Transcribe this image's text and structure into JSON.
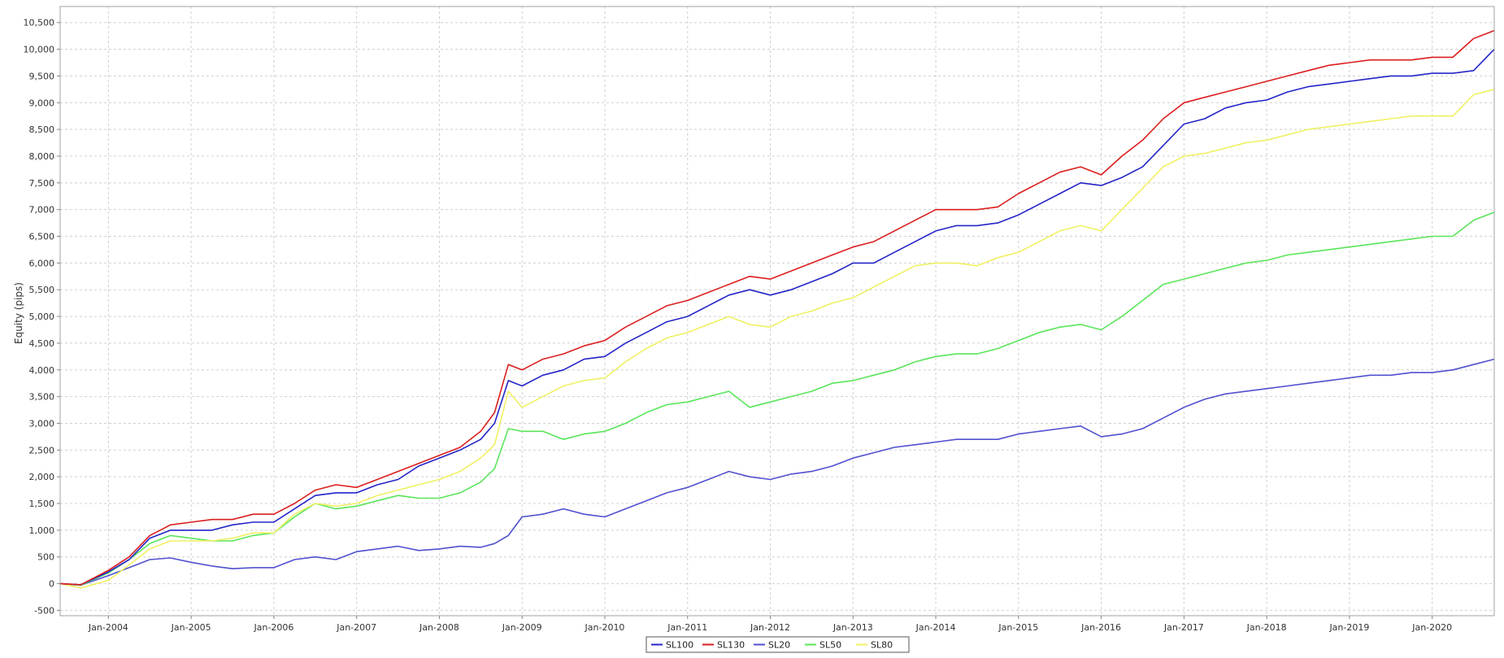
{
  "chart_data": {
    "type": "line",
    "title": "",
    "xlabel": "",
    "ylabel": "Equity (pips)",
    "xlim": [
      "2003-06",
      "2020-10"
    ],
    "ylim": [
      -600,
      10800
    ],
    "y_ticks": [
      -500,
      0,
      500,
      1000,
      1500,
      2000,
      2500,
      3000,
      3500,
      4000,
      4500,
      5000,
      5500,
      6000,
      6500,
      7000,
      7500,
      8000,
      8500,
      9000,
      9500,
      10000,
      10500
    ],
    "y_tick_labels": [
      "-500",
      "0",
      "500",
      "1,000",
      "1,500",
      "2,000",
      "2,500",
      "3,000",
      "3,500",
      "4,000",
      "4,500",
      "5,000",
      "5,500",
      "6,000",
      "6,500",
      "7,000",
      "7,500",
      "8,000",
      "8,500",
      "9,000",
      "9,500",
      "10,000",
      "10,500"
    ],
    "x_ticks": [
      "2004-01",
      "2005-01",
      "2006-01",
      "2007-01",
      "2008-01",
      "2009-01",
      "2010-01",
      "2011-01",
      "2012-01",
      "2013-01",
      "2014-01",
      "2015-01",
      "2016-01",
      "2017-01",
      "2018-01",
      "2019-01",
      "2020-01"
    ],
    "x_tick_labels": [
      "Jan-2004",
      "Jan-2005",
      "Jan-2006",
      "Jan-2007",
      "Jan-2008",
      "Jan-2009",
      "Jan-2010",
      "Jan-2011",
      "Jan-2012",
      "Jan-2013",
      "Jan-2014",
      "Jan-2015",
      "Jan-2016",
      "Jan-2017",
      "Jan-2018",
      "Jan-2019",
      "Jan-2020"
    ],
    "grid": true,
    "legend_position": "bottom-center",
    "series": [
      {
        "name": "SL100",
        "color": "#2424c8",
        "x": [
          "2003-06",
          "2003-09",
          "2004-01",
          "2004-04",
          "2004-07",
          "2004-10",
          "2005-01",
          "2005-04",
          "2005-07",
          "2005-10",
          "2006-01",
          "2006-04",
          "2006-07",
          "2006-10",
          "2007-01",
          "2007-04",
          "2007-07",
          "2007-10",
          "2008-01",
          "2008-04",
          "2008-07",
          "2008-09",
          "2008-11",
          "2009-01",
          "2009-04",
          "2009-07",
          "2009-10",
          "2010-01",
          "2010-04",
          "2010-07",
          "2010-10",
          "2011-01",
          "2011-04",
          "2011-07",
          "2011-10",
          "2012-01",
          "2012-04",
          "2012-07",
          "2012-10",
          "2013-01",
          "2013-04",
          "2013-07",
          "2013-10",
          "2014-01",
          "2014-04",
          "2014-07",
          "2014-10",
          "2015-01",
          "2015-04",
          "2015-07",
          "2015-10",
          "2016-01",
          "2016-04",
          "2016-07",
          "2016-10",
          "2017-01",
          "2017-04",
          "2017-07",
          "2017-10",
          "2018-01",
          "2018-04",
          "2018-07",
          "2018-10",
          "2019-01",
          "2019-04",
          "2019-07",
          "2019-10",
          "2020-01",
          "2020-04",
          "2020-07",
          "2020-10"
        ],
        "y": [
          0,
          -20,
          220,
          450,
          850,
          1000,
          1000,
          1000,
          1100,
          1150,
          1150,
          1400,
          1650,
          1700,
          1700,
          1850,
          1950,
          2200,
          2350,
          2500,
          2700,
          3000,
          3800,
          3700,
          3900,
          4000,
          4200,
          4250,
          4500,
          4700,
          4900,
          5000,
          5200,
          5400,
          5500,
          5400,
          5500,
          5650,
          5800,
          6000,
          6000,
          6200,
          6400,
          6600,
          6700,
          6700,
          6750,
          6900,
          7100,
          7300,
          7500,
          7450,
          7600,
          7800,
          8200,
          8600,
          8700,
          8900,
          9000,
          9050,
          9200,
          9300,
          9350,
          9400,
          9450,
          9500,
          9500,
          9550,
          9550,
          9600,
          10000
        ]
      },
      {
        "name": "SL130",
        "color": "#dc1e1e",
        "x": [
          "2003-06",
          "2003-09",
          "2004-01",
          "2004-04",
          "2004-07",
          "2004-10",
          "2005-01",
          "2005-04",
          "2005-07",
          "2005-10",
          "2006-01",
          "2006-04",
          "2006-07",
          "2006-10",
          "2007-01",
          "2007-04",
          "2007-07",
          "2007-10",
          "2008-01",
          "2008-04",
          "2008-07",
          "2008-09",
          "2008-11",
          "2009-01",
          "2009-04",
          "2009-07",
          "2009-10",
          "2010-01",
          "2010-04",
          "2010-07",
          "2010-10",
          "2011-01",
          "2011-04",
          "2011-07",
          "2011-10",
          "2012-01",
          "2012-04",
          "2012-07",
          "2012-10",
          "2013-01",
          "2013-04",
          "2013-07",
          "2013-10",
          "2014-01",
          "2014-04",
          "2014-07",
          "2014-10",
          "2015-01",
          "2015-04",
          "2015-07",
          "2015-10",
          "2016-01",
          "2016-04",
          "2016-07",
          "2016-10",
          "2017-01",
          "2017-04",
          "2017-07",
          "2017-10",
          "2018-01",
          "2018-04",
          "2018-07",
          "2018-10",
          "2019-01",
          "2019-04",
          "2019-07",
          "2019-10",
          "2020-01",
          "2020-04",
          "2020-07",
          "2020-10"
        ],
        "y": [
          0,
          -20,
          250,
          500,
          900,
          1100,
          1150,
          1200,
          1200,
          1300,
          1300,
          1500,
          1750,
          1850,
          1800,
          1950,
          2100,
          2250,
          2400,
          2550,
          2850,
          3200,
          4100,
          4000,
          4200,
          4300,
          4450,
          4550,
          4800,
          5000,
          5200,
          5300,
          5450,
          5600,
          5750,
          5700,
          5850,
          6000,
          6150,
          6300,
          6400,
          6600,
          6800,
          7000,
          7000,
          7000,
          7050,
          7300,
          7500,
          7700,
          7800,
          7650,
          8000,
          8300,
          8700,
          9000,
          9100,
          9200,
          9300,
          9400,
          9500,
          9600,
          9700,
          9750,
          9800,
          9800,
          9800,
          9850,
          9850,
          10200,
          10350
        ]
      },
      {
        "name": "SL20",
        "color": "#5050d0",
        "x": [
          "2003-06",
          "2003-09",
          "2004-01",
          "2004-04",
          "2004-07",
          "2004-10",
          "2005-01",
          "2005-04",
          "2005-07",
          "2005-10",
          "2006-01",
          "2006-04",
          "2006-07",
          "2006-10",
          "2007-01",
          "2007-04",
          "2007-07",
          "2007-10",
          "2008-01",
          "2008-04",
          "2008-07",
          "2008-09",
          "2008-11",
          "2009-01",
          "2009-04",
          "2009-07",
          "2009-10",
          "2010-01",
          "2010-04",
          "2010-07",
          "2010-10",
          "2011-01",
          "2011-04",
          "2011-07",
          "2011-10",
          "2012-01",
          "2012-04",
          "2012-07",
          "2012-10",
          "2013-01",
          "2013-04",
          "2013-07",
          "2013-10",
          "2014-01",
          "2014-04",
          "2014-07",
          "2014-10",
          "2015-01",
          "2015-04",
          "2015-07",
          "2015-10",
          "2016-01",
          "2016-04",
          "2016-07",
          "2016-10",
          "2017-01",
          "2017-04",
          "2017-07",
          "2017-10",
          "2018-01",
          "2018-04",
          "2018-07",
          "2018-10",
          "2019-01",
          "2019-04",
          "2019-07",
          "2019-10",
          "2020-01",
          "2020-04",
          "2020-07",
          "2020-10"
        ],
        "y": [
          0,
          -30,
          150,
          300,
          450,
          480,
          400,
          330,
          280,
          300,
          300,
          450,
          500,
          450,
          600,
          650,
          700,
          620,
          650,
          700,
          680,
          750,
          900,
          1250,
          1300,
          1400,
          1300,
          1250,
          1400,
          1550,
          1700,
          1800,
          1950,
          2100,
          2000,
          1950,
          2050,
          2100,
          2200,
          2350,
          2450,
          2550,
          2600,
          2650,
          2700,
          2700,
          2700,
          2800,
          2850,
          2900,
          2950,
          2750,
          2800,
          2900,
          3100,
          3300,
          3450,
          3550,
          3600,
          3650,
          3700,
          3750,
          3800,
          3850,
          3900,
          3900,
          3950,
          3950,
          4000,
          4100,
          4200
        ]
      },
      {
        "name": "SL50",
        "color": "#5ae65a",
        "x": [
          "2003-06",
          "2003-09",
          "2004-01",
          "2004-04",
          "2004-07",
          "2004-10",
          "2005-01",
          "2005-04",
          "2005-07",
          "2005-10",
          "2006-01",
          "2006-04",
          "2006-07",
          "2006-10",
          "2007-01",
          "2007-04",
          "2007-07",
          "2007-10",
          "2008-01",
          "2008-04",
          "2008-07",
          "2008-09",
          "2008-11",
          "2009-01",
          "2009-04",
          "2009-07",
          "2009-10",
          "2010-01",
          "2010-04",
          "2010-07",
          "2010-10",
          "2011-01",
          "2011-04",
          "2011-07",
          "2011-10",
          "2012-01",
          "2012-04",
          "2012-07",
          "2012-10",
          "2013-01",
          "2013-04",
          "2013-07",
          "2013-10",
          "2014-01",
          "2014-04",
          "2014-07",
          "2014-10",
          "2015-01",
          "2015-04",
          "2015-07",
          "2015-10",
          "2016-01",
          "2016-04",
          "2016-07",
          "2016-10",
          "2017-01",
          "2017-04",
          "2017-07",
          "2017-10",
          "2018-01",
          "2018-04",
          "2018-07",
          "2018-10",
          "2019-01",
          "2019-04",
          "2019-07",
          "2019-10",
          "2020-01",
          "2020-04",
          "2020-07",
          "2020-10"
        ],
        "y": [
          0,
          -30,
          200,
          450,
          750,
          900,
          850,
          800,
          800,
          900,
          950,
          1250,
          1500,
          1400,
          1450,
          1550,
          1650,
          1600,
          1600,
          1700,
          1900,
          2150,
          2900,
          2850,
          2850,
          2700,
          2800,
          2850,
          3000,
          3200,
          3350,
          3400,
          3500,
          3600,
          3300,
          3400,
          3500,
          3600,
          3750,
          3800,
          3900,
          4000,
          4150,
          4250,
          4300,
          4300,
          4400,
          4550,
          4700,
          4800,
          4850,
          4750,
          5000,
          5300,
          5600,
          5700,
          5800,
          5900,
          6000,
          6050,
          6150,
          6200,
          6250,
          6300,
          6350,
          6400,
          6450,
          6500,
          6500,
          6800,
          6950
        ]
      },
      {
        "name": "SL80",
        "color": "#f0f064",
        "x": [
          "2003-06",
          "2003-09",
          "2004-01",
          "2004-04",
          "2004-07",
          "2004-10",
          "2005-01",
          "2005-04",
          "2005-07",
          "2005-10",
          "2006-01",
          "2006-04",
          "2006-07",
          "2006-10",
          "2007-01",
          "2007-04",
          "2007-07",
          "2007-10",
          "2008-01",
          "2008-04",
          "2008-07",
          "2008-09",
          "2008-11",
          "2009-01",
          "2009-04",
          "2009-07",
          "2009-10",
          "2010-01",
          "2010-04",
          "2010-07",
          "2010-10",
          "2011-01",
          "2011-04",
          "2011-07",
          "2011-10",
          "2012-01",
          "2012-04",
          "2012-07",
          "2012-10",
          "2013-01",
          "2013-04",
          "2013-07",
          "2013-10",
          "2014-01",
          "2014-04",
          "2014-07",
          "2014-10",
          "2015-01",
          "2015-04",
          "2015-07",
          "2015-10",
          "2016-01",
          "2016-04",
          "2016-07",
          "2016-10",
          "2017-01",
          "2017-04",
          "2017-07",
          "2017-10",
          "2018-01",
          "2018-04",
          "2018-07",
          "2018-10",
          "2019-01",
          "2019-04",
          "2019-07",
          "2019-10",
          "2020-01",
          "2020-04",
          "2020-07",
          "2020-10"
        ],
        "y": [
          0,
          -80,
          60,
          350,
          650,
          800,
          800,
          800,
          850,
          950,
          950,
          1300,
          1500,
          1450,
          1500,
          1650,
          1750,
          1850,
          1950,
          2100,
          2350,
          2600,
          3600,
          3300,
          3500,
          3700,
          3800,
          3850,
          4150,
          4400,
          4600,
          4700,
          4850,
          5000,
          4850,
          4800,
          5000,
          5100,
          5250,
          5350,
          5550,
          5750,
          5950,
          6000,
          6000,
          5950,
          6100,
          6200,
          6400,
          6600,
          6700,
          6600,
          7000,
          7400,
          7800,
          8000,
          8050,
          8150,
          8250,
          8300,
          8400,
          8500,
          8550,
          8600,
          8650,
          8700,
          8750,
          8750,
          8750,
          9150,
          9250
        ]
      }
    ]
  }
}
